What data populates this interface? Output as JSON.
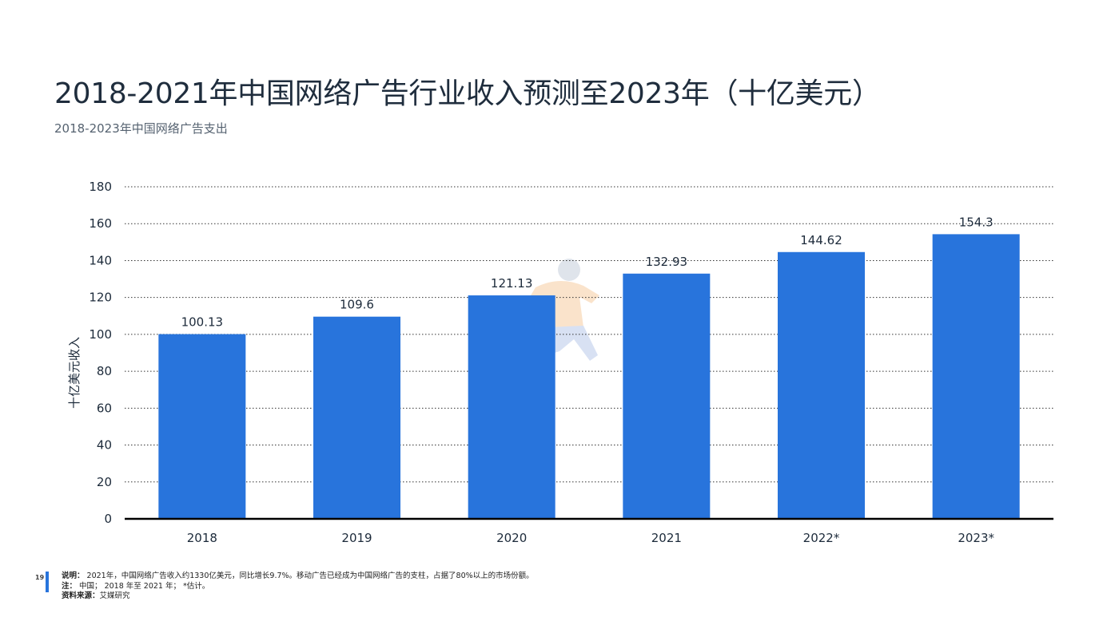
{
  "title": "2018-2021年中国网络广告行业收入预测至2023年（十亿美元）",
  "subtitle": "2018-2023年中国网络广告支出",
  "chart_data": {
    "type": "bar",
    "categories": [
      "2018",
      "2019",
      "2020",
      "2021",
      "2022*",
      "2023*"
    ],
    "values": [
      100.13,
      109.6,
      121.13,
      132.93,
      144.62,
      154.3
    ],
    "data_labels": [
      "100.13",
      "109.6",
      "121.13",
      "132.93",
      "144.62",
      "154.3"
    ],
    "ylabel": "十亿美元收入",
    "xlabel": "",
    "ylim": [
      0,
      180
    ],
    "yticks": [
      0,
      20,
      40,
      60,
      80,
      100,
      120,
      140,
      160,
      180
    ],
    "grid": "dotted horizontal",
    "legend": "none",
    "bar_color": "#2874dc"
  },
  "footer": {
    "page_number": "19",
    "note_label": "说明：",
    "note_text": "2021年，中国网络广告收入约1330亿美元，同比增长9.7%。移动广告已经成为中国网络广告的支柱，占据了80%以上的市场份额。",
    "remark_label": "注：",
    "remark_text": "中国； 2018 年至 2021 年； *估计。",
    "source_label": "资料来源：",
    "source_text": "艾媒研究"
  }
}
